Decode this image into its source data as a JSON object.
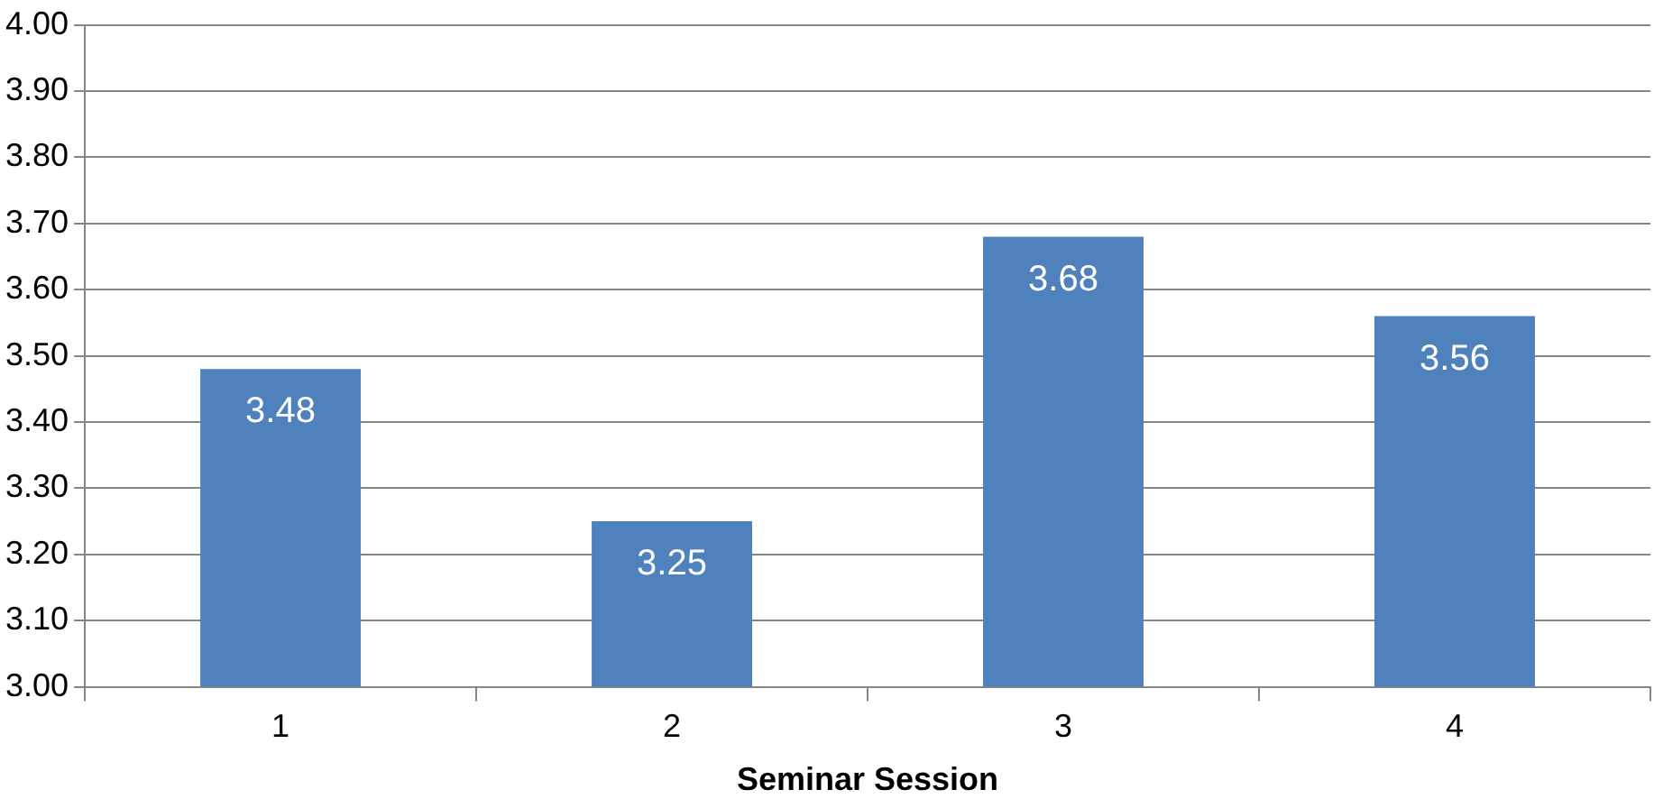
{
  "chart_data": {
    "type": "bar",
    "xlabel": "Seminar Session",
    "categories": [
      "1",
      "2",
      "3",
      "4"
    ],
    "values": [
      3.48,
      3.25,
      3.68,
      3.56
    ],
    "color": "#4f81bd",
    "ylim": [
      3,
      4
    ],
    "yticks": [
      {
        "value": 3,
        "label": "3.00"
      },
      {
        "value": 3.1,
        "label": "3.10"
      },
      {
        "value": 3.2,
        "label": "3.20"
      },
      {
        "value": 3.3,
        "label": "3.30"
      },
      {
        "value": 3.4,
        "label": "3.40"
      },
      {
        "value": 3.5,
        "label": "3.50"
      },
      {
        "value": 3.6,
        "label": "3.60"
      },
      {
        "value": 3.7,
        "label": "3.70"
      },
      {
        "value": 3.8,
        "label": "3.80"
      },
      {
        "value": 3.9,
        "label": "3.90"
      },
      {
        "value": 4,
        "label": "4.00"
      }
    ],
    "grid": "y",
    "data_labels": true
  }
}
